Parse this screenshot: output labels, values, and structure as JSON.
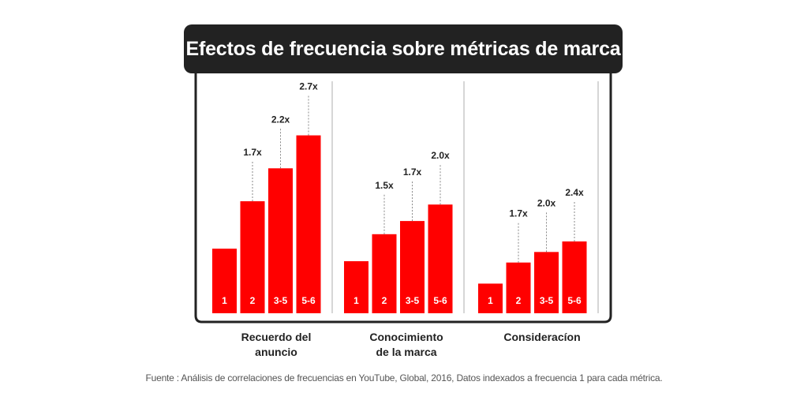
{
  "chart_data": {
    "type": "bar",
    "title": "Efectos de frecuencia sobre métricas de marca",
    "ylim": [
      0,
      2.9
    ],
    "bar_color": "#ff0000",
    "frame_color": "#222222",
    "groups": [
      {
        "name": "Recuerdo del anuncio",
        "name_lines": [
          "Recuerdo del",
          "anuncio"
        ],
        "categories": [
          "1",
          "2",
          "3-5",
          "5-6"
        ],
        "values": [
          0.98,
          1.7,
          2.2,
          2.7
        ],
        "labels": [
          "",
          "1.7x",
          "2.2x",
          "2.7x"
        ]
      },
      {
        "name": "Conocimiento de la marca",
        "name_lines": [
          "Conocimiento",
          "de la marca"
        ],
        "categories": [
          "1",
          "2",
          "3-5",
          "5-6"
        ],
        "values": [
          0.79,
          1.2,
          1.4,
          1.65
        ],
        "labels": [
          "",
          "1.5x",
          "1.7x",
          "2.0x"
        ]
      },
      {
        "name": "Consideracíon",
        "name_lines": [
          "Consideracíon"
        ],
        "categories": [
          "1",
          "2",
          "3-5",
          "5-6"
        ],
        "values": [
          0.45,
          0.77,
          0.93,
          1.09
        ],
        "labels": [
          "",
          "1.7x",
          "2.0x",
          "2.4x"
        ]
      }
    ]
  },
  "footer": {
    "source": "Fuente : Análisis de correlaciones de frecuencias en YouTube, Global, 2016, Datos indexados a frecuencia 1 para cada métrica."
  }
}
